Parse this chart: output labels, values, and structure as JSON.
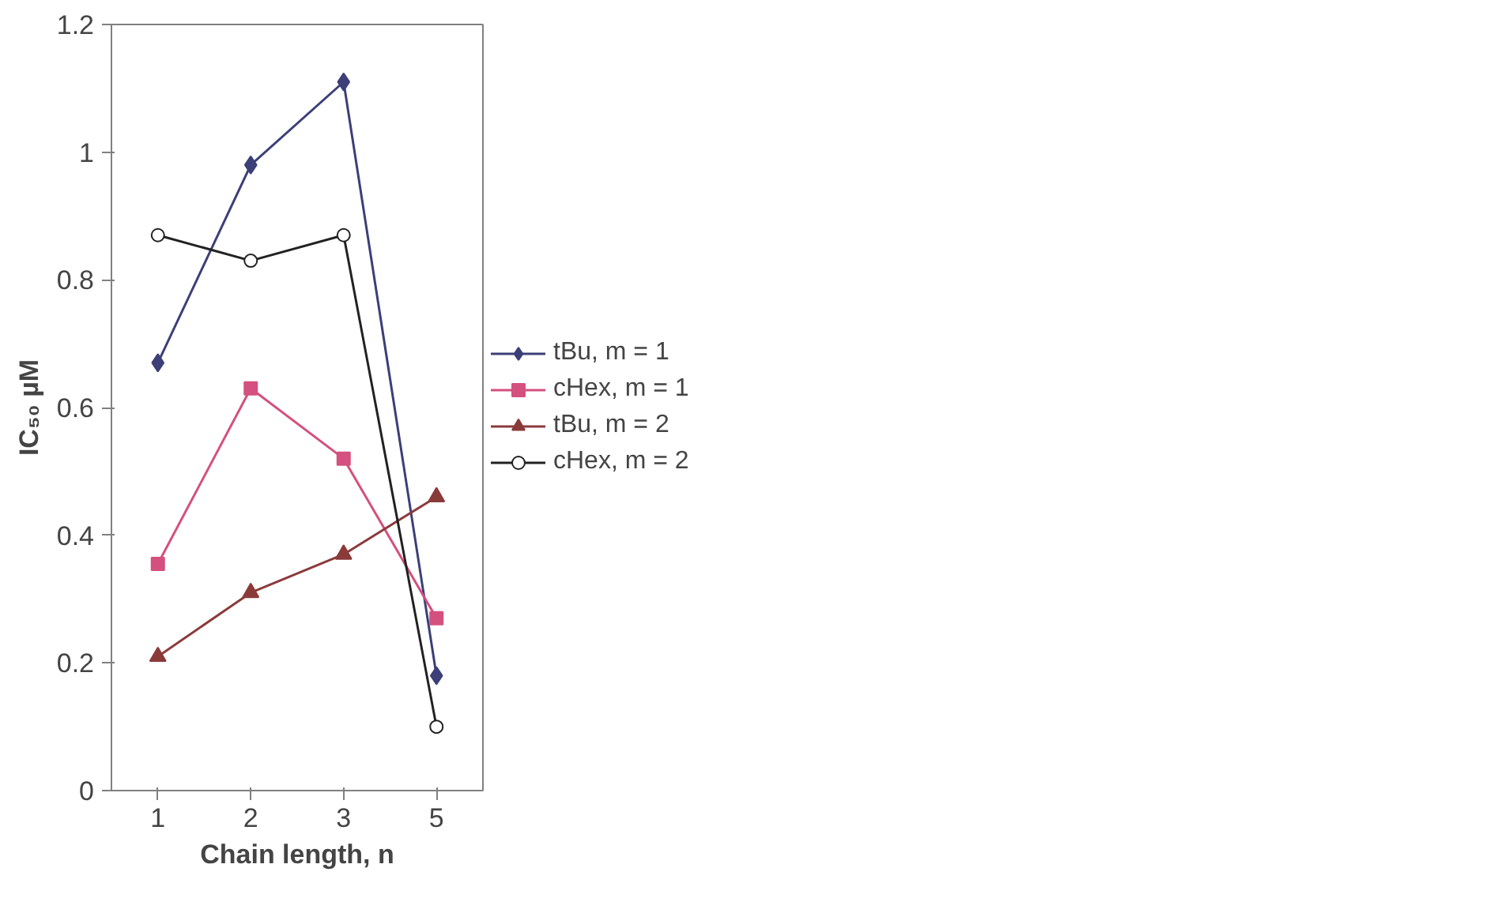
{
  "chart_data": {
    "type": "line",
    "xlabel": "Chain length, n",
    "ylabel": "IC₅₀ µM",
    "categories": [
      "1",
      "2",
      "3",
      "5"
    ],
    "ylim": [
      0,
      1.2
    ],
    "yticks": [
      0,
      0.2,
      0.4,
      0.6,
      0.8,
      1,
      1.2
    ],
    "grid": false,
    "legend": "right",
    "series": [
      {
        "name": "tBu, m = 1",
        "color": "#3c3f78",
        "marker": "diamond",
        "values": [
          0.67,
          0.98,
          1.11,
          0.18
        ]
      },
      {
        "name": "cHex, m = 1",
        "color": "#d4507e",
        "marker": "square",
        "values": [
          0.355,
          0.63,
          0.52,
          0.27
        ]
      },
      {
        "name": "tBu, m = 2",
        "color": "#8b3a3a",
        "marker": "triangle",
        "values": [
          0.21,
          0.31,
          0.37,
          0.46
        ]
      },
      {
        "name": "cHex, m = 2",
        "color": "#222222",
        "marker": "circle",
        "values": [
          0.87,
          0.83,
          0.87,
          0.1
        ]
      }
    ]
  }
}
